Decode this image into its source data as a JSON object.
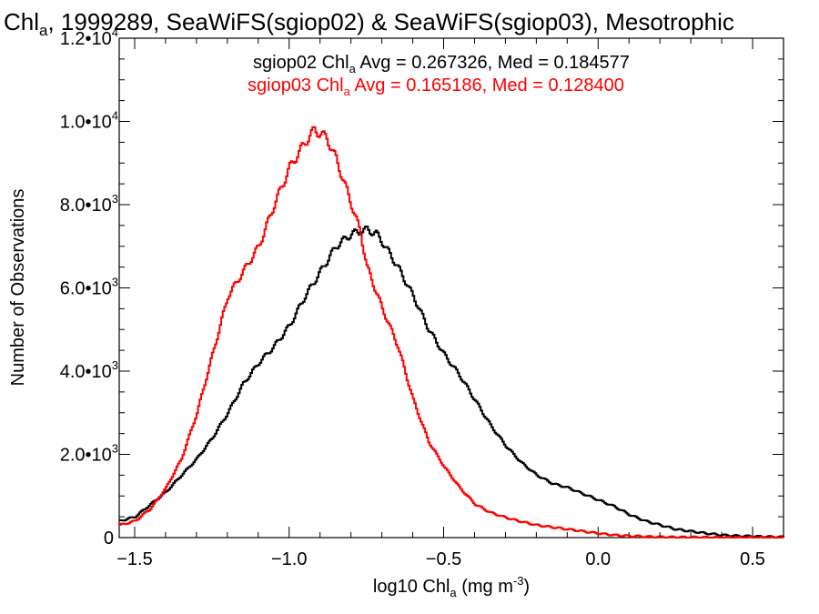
{
  "chart_data": {
    "type": "line",
    "title": {
      "pre": "Chl",
      "sub": "a",
      "post": ", 1999289, SeaWiFS(sgiop02) & SeaWiFS(sgiop03), Mesotrophic"
    },
    "xlabel": {
      "pre": "log10 Chl",
      "sub": "a",
      "post": " (mg m",
      "sup": "-3",
      "end": ")"
    },
    "ylabel": "Number of Observations",
    "xlim": [
      -1.55,
      0.6
    ],
    "ylim": [
      0,
      12000
    ],
    "x_ticks": [
      {
        "value": -1.5,
        "label": "−1.5"
      },
      {
        "value": -1.0,
        "label": "−1.0"
      },
      {
        "value": -0.5,
        "label": "−0.5"
      },
      {
        "value": 0.0,
        "label": "0.0"
      },
      {
        "value": 0.5,
        "label": "0.5"
      }
    ],
    "y_ticks": [
      {
        "value": 0,
        "mant": "0",
        "exp": ""
      },
      {
        "value": 2000,
        "mant": "2.0•10",
        "exp": "3"
      },
      {
        "value": 4000,
        "mant": "4.0•10",
        "exp": "3"
      },
      {
        "value": 6000,
        "mant": "6.0•10",
        "exp": "3"
      },
      {
        "value": 8000,
        "mant": "8.0•10",
        "exp": "3"
      },
      {
        "value": 10000,
        "mant": "1.0•10",
        "exp": "4"
      },
      {
        "value": 12000,
        "mant": "1.2•10",
        "exp": "4"
      }
    ],
    "legend_position": "top",
    "series": [
      {
        "name": "sgiop02",
        "color": "#000000",
        "label": {
          "pre": "sgiop02 Chl",
          "sub": "a",
          "post": " Avg = 0.267326, Med = 0.184577"
        },
        "x": [
          -1.55,
          -1.5,
          -1.45,
          -1.4,
          -1.35,
          -1.3,
          -1.25,
          -1.2,
          -1.15,
          -1.1,
          -1.05,
          -1.0,
          -0.95,
          -0.9,
          -0.85,
          -0.8,
          -0.75,
          -0.72,
          -0.7,
          -0.65,
          -0.6,
          -0.55,
          -0.5,
          -0.45,
          -0.4,
          -0.35,
          -0.3,
          -0.25,
          -0.2,
          -0.15,
          -0.1,
          -0.05,
          0.0,
          0.05,
          0.1,
          0.15,
          0.2,
          0.25,
          0.3,
          0.35,
          0.4,
          0.45,
          0.5,
          0.55,
          0.6
        ],
        "y": [
          400,
          500,
          800,
          1100,
          1500,
          1900,
          2400,
          3000,
          3700,
          4200,
          4600,
          5100,
          5800,
          6400,
          7000,
          7300,
          7400,
          7300,
          7100,
          6500,
          5800,
          5000,
          4400,
          3900,
          3300,
          2700,
          2200,
          1800,
          1500,
          1300,
          1200,
          1050,
          900,
          750,
          550,
          400,
          300,
          200,
          150,
          100,
          60,
          40,
          30,
          20,
          10
        ]
      },
      {
        "name": "sgiop03",
        "color": "#ff0000",
        "label": {
          "pre": "sgiop03 Chl",
          "sub": "a",
          "post": " Avg = 0.165186, Med = 0.128400"
        },
        "x": [
          -1.55,
          -1.5,
          -1.45,
          -1.4,
          -1.35,
          -1.3,
          -1.25,
          -1.2,
          -1.15,
          -1.1,
          -1.05,
          -1.0,
          -0.95,
          -0.92,
          -0.9,
          -0.88,
          -0.85,
          -0.8,
          -0.77,
          -0.75,
          -0.7,
          -0.65,
          -0.6,
          -0.55,
          -0.5,
          -0.45,
          -0.4,
          -0.35,
          -0.3,
          -0.25,
          -0.2,
          -0.15,
          -0.1,
          -0.05,
          0.0,
          0.05,
          0.1,
          0.15,
          0.2,
          0.25,
          0.3,
          0.35,
          0.4,
          0.45,
          0.5,
          0.55,
          0.6
        ],
        "y": [
          300,
          400,
          700,
          1200,
          1900,
          3000,
          4400,
          5800,
          6400,
          7000,
          8000,
          8900,
          9500,
          9800,
          9700,
          9600,
          9100,
          8000,
          7300,
          6500,
          5500,
          4600,
          3300,
          2300,
          1700,
          1200,
          800,
          600,
          480,
          380,
          300,
          250,
          200,
          150,
          100,
          60,
          40,
          25,
          15,
          10,
          8,
          5,
          3,
          2,
          1,
          0,
          0
        ]
      }
    ]
  }
}
